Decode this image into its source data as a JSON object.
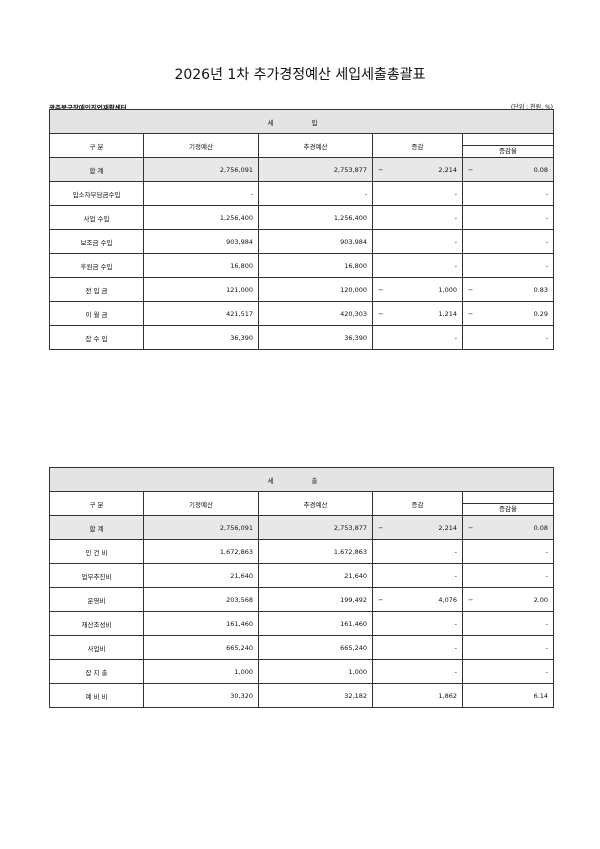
{
  "title": "2026년 1차 추가경정예산 세입세출총괄표",
  "org": "광주북구장애인직업재활센터",
  "unit": "(단위 : 천원, %)",
  "columns": {
    "category": "구  분",
    "original": "기정예산",
    "revised": "추경예산",
    "change": "증감",
    "rate": "증감율"
  },
  "revenue": {
    "title": "세 입",
    "rows": [
      {
        "label": "합  계",
        "original": "2,756,091",
        "revised": "2,753,877",
        "change_sign": "−",
        "change": "2,214",
        "rate_sign": "−",
        "rate": "0.08"
      },
      {
        "label": "입소자부담금수입",
        "original": "-",
        "revised": "-",
        "change_sign": "",
        "change": "-",
        "rate_sign": "",
        "rate": "-"
      },
      {
        "label": "사업 수입",
        "original": "1,256,400",
        "revised": "1,256,400",
        "change_sign": "",
        "change": "-",
        "rate_sign": "",
        "rate": "-"
      },
      {
        "label": "보조금 수입",
        "original": "903,984",
        "revised": "903,984",
        "change_sign": "",
        "change": "-",
        "rate_sign": "",
        "rate": "-"
      },
      {
        "label": "후원금 수입",
        "original": "16,800",
        "revised": "16,800",
        "change_sign": "",
        "change": "-",
        "rate_sign": "",
        "rate": "-"
      },
      {
        "label": "전 입 금",
        "original": "121,000",
        "revised": "120,000",
        "change_sign": "−",
        "change": "1,000",
        "rate_sign": "−",
        "rate": "0.83"
      },
      {
        "label": "이 월 금",
        "original": "421,517",
        "revised": "420,303",
        "change_sign": "−",
        "change": "1,214",
        "rate_sign": "−",
        "rate": "0.29"
      },
      {
        "label": "잡 수 입",
        "original": "36,390",
        "revised": "36,390",
        "change_sign": "",
        "change": "-",
        "rate_sign": "",
        "rate": "-"
      }
    ]
  },
  "expenditure": {
    "title": "세 출",
    "rows": [
      {
        "label": "합  계",
        "original": "2,756,091",
        "revised": "2,753,877",
        "change_sign": "−",
        "change": "2,214",
        "rate_sign": "−",
        "rate": "0.08"
      },
      {
        "label": "인 건 비",
        "original": "1,672,863",
        "revised": "1,672,863",
        "change_sign": "",
        "change": "-",
        "rate_sign": "",
        "rate": "-"
      },
      {
        "label": "업무추진비",
        "original": "21,640",
        "revised": "21,640",
        "change_sign": "",
        "change": "-",
        "rate_sign": "",
        "rate": "-"
      },
      {
        "label": "운영비",
        "original": "203,568",
        "revised": "199,492",
        "change_sign": "−",
        "change": "4,076",
        "rate_sign": "−",
        "rate": "2.00"
      },
      {
        "label": "재산조성비",
        "original": "161,460",
        "revised": "161,460",
        "change_sign": "",
        "change": "-",
        "rate_sign": "",
        "rate": "-"
      },
      {
        "label": "사업비",
        "original": "665,240",
        "revised": "665,240",
        "change_sign": "",
        "change": "-",
        "rate_sign": "",
        "rate": "-"
      },
      {
        "label": "잡 지 출",
        "original": "1,000",
        "revised": "1,000",
        "change_sign": "",
        "change": "-",
        "rate_sign": "",
        "rate": "-"
      },
      {
        "label": "예 비 비",
        "original": "30,320",
        "revised": "32,182",
        "change_sign": "",
        "change": "1,862",
        "rate_sign": "",
        "rate": "6.14"
      }
    ]
  }
}
